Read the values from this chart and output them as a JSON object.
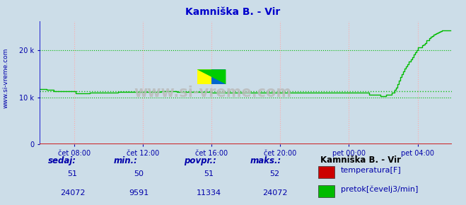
{
  "title": "Kamniška B. - Vir",
  "title_color": "#0000cc",
  "bg_color": "#ccdde8",
  "plot_bg_color": "#ccdde8",
  "grid_color_h": "#00bb00",
  "grid_color_v": "#ffaaaa",
  "x_tick_labels": [
    "čet 08:00",
    "čet 12:00",
    "čet 16:00",
    "čet 20:00",
    "pet 00:00",
    "pet 04:00"
  ],
  "y_tick_labels": [
    "0",
    "10 k",
    "20 k"
  ],
  "y_tick_vals": [
    0,
    10000,
    20000
  ],
  "ylim": [
    0,
    26000
  ],
  "xlim_n": 288,
  "temp_color": "#cc0000",
  "flow_color": "#00bb00",
  "watermark": "www.si-vreme.com",
  "legend_title": "Kamniška B. - Vir",
  "label_color": "#0000aa",
  "stats_labels": [
    "sedaj:",
    "min.:",
    "povpr.:",
    "maks.:"
  ],
  "stats_temp": [
    "51",
    "50",
    "51",
    "52"
  ],
  "stats_flow": [
    "24072",
    "9591",
    "11334",
    "24072"
  ],
  "legend_entries": [
    "temperatura[F]",
    "pretok[čevelj3/min]"
  ],
  "legend_colors": [
    "#cc0000",
    "#00bb00"
  ],
  "left_label": "www.si-vreme.com",
  "spine_color_v": "#0000cc",
  "spine_color_h": "#cc0000",
  "avg_flow": 11334
}
